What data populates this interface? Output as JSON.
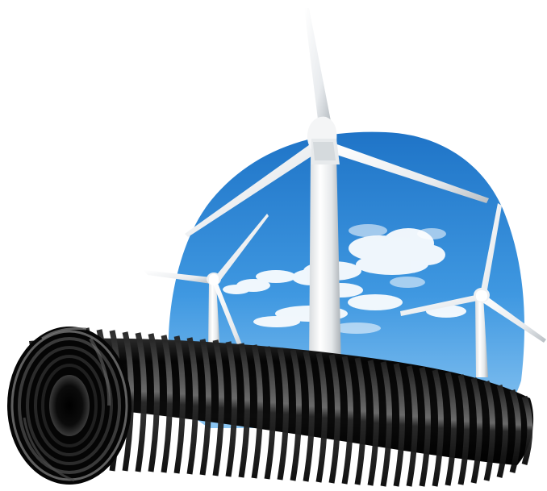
{
  "scene": {
    "subject": "wind-turbines-with-corrugated-pipe",
    "turbine_count": 3,
    "colors": {
      "background": "#ffffff",
      "sky_top": "#1f74c7",
      "sky_mid": "#3f98e1",
      "sky_bottom": "#8cc6f2",
      "cloud": "#ffffff",
      "turbine_light": "#ffffff",
      "turbine_shade": "#bfc4c8",
      "pipe_dark": "#050505",
      "pipe_highlight": "#6f6f6f"
    }
  }
}
